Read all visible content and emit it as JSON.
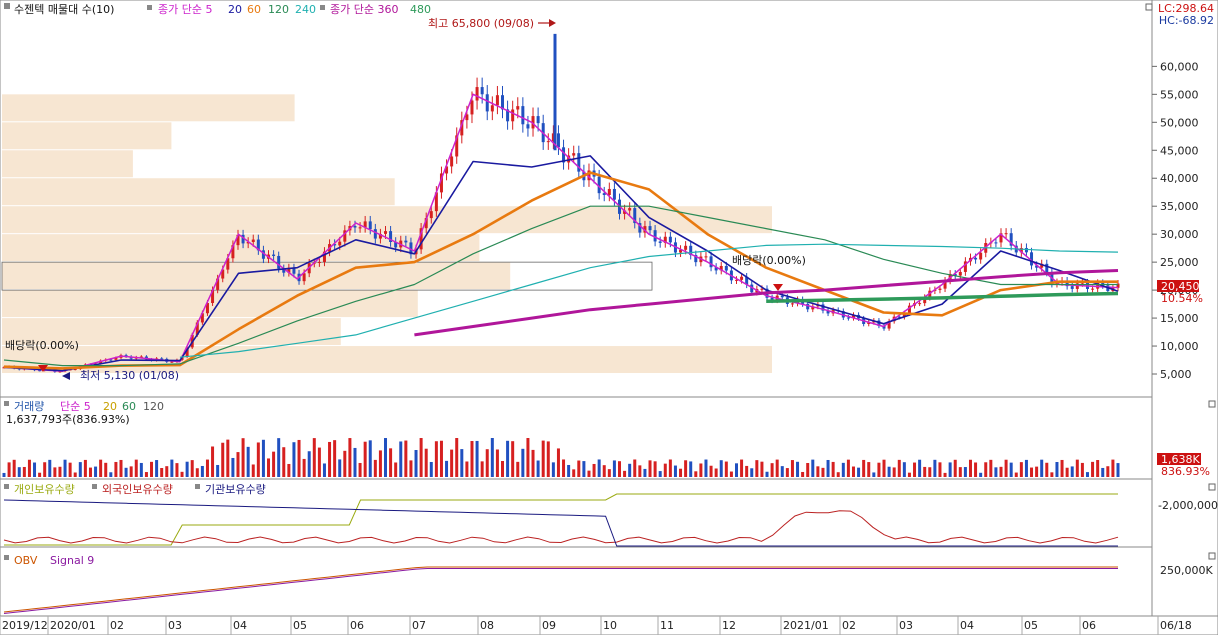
{
  "panels": {
    "price": {
      "title": "수젠텍 매물대 수(10)",
      "legend": [
        {
          "text": "종가 단순 5",
          "color": "#cc22cc"
        },
        {
          "text": "20",
          "color": "#1a1aa0"
        },
        {
          "text": "60",
          "color": "#e87a10"
        },
        {
          "text": "120",
          "color": "#2a8a55"
        },
        {
          "text": "240",
          "color": "#20b0b0"
        },
        {
          "text": "종가 단순 360",
          "color": "#b0169a"
        },
        {
          "text": "480",
          "color": "#2e9a5a"
        }
      ],
      "lc_label": "LC:298.64",
      "hc_label": "HC:-68.92",
      "annotations": {
        "high": "최고 65,800 (09/08)",
        "low": "최저 5,130 (01/08)",
        "dividend_left": "배당락(0.00%)",
        "dividend_right": "배당락(0.00%)"
      },
      "current_price": "20,450",
      "current_change": "10.54%",
      "y_ticks": [
        "60,000",
        "55,000",
        "50,000",
        "45,000",
        "40,000",
        "35,000",
        "30,000",
        "25,000",
        "20,000",
        "15,000",
        "10,000",
        "5,000"
      ]
    },
    "volume": {
      "legend": [
        {
          "text": "거래량",
          "color": "#2255aa"
        },
        {
          "text": "단순 5",
          "color": "#cc22cc"
        },
        {
          "text": "20",
          "color": "#c8a000"
        },
        {
          "text": "60",
          "color": "#2a8a55"
        },
        {
          "text": "120",
          "color": "#555555"
        }
      ],
      "readout": "1,637,793주(836.93%)",
      "value_box": "1,638K",
      "value_pct": "836.93%"
    },
    "holdings": {
      "legend": [
        {
          "text": "개인보유수량",
          "color": "#9aaa10"
        },
        {
          "text": "외국인보유수량",
          "color": "#bb2222"
        },
        {
          "text": "기관보유수량",
          "color": "#1a1a80"
        }
      ],
      "y_tick": "-2,000,000"
    },
    "obv": {
      "legend": [
        {
          "text": "OBV",
          "color": "#cc5500"
        },
        {
          "text": "Signal 9",
          "color": "#8a1aa0"
        }
      ],
      "y_tick": "250,000K"
    }
  },
  "x_labels": [
    "2019/12",
    "2020/01",
    "02",
    "03",
    "04",
    "05",
    "06",
    "07",
    "08",
    "09",
    "10",
    "11",
    "12",
    "2021/01",
    "02",
    "03",
    "04",
    "05",
    "06",
    "06/18"
  ],
  "chart_data": {
    "type": "line",
    "title": "수젠텍 매물대 수(10)",
    "xlabel": "",
    "ylabel": "",
    "ylim": [
      2500,
      66500
    ],
    "x": [
      "2019/12",
      "2020/01",
      "02",
      "03",
      "04",
      "05",
      "06",
      "07",
      "08",
      "09",
      "10",
      "11",
      "12",
      "2021/01",
      "02",
      "03",
      "04",
      "05",
      "06",
      "06/18"
    ],
    "series": [
      {
        "name": "종가 단순 5",
        "values": [
          6200,
          5500,
          8200,
          7200,
          30000,
          22000,
          32000,
          27000,
          55000,
          50000,
          40000,
          30000,
          25000,
          19000,
          16500,
          13500,
          21000,
          30000,
          21000,
          20450
        ]
      },
      {
        "name": "20",
        "values": [
          6200,
          5600,
          7500,
          7400,
          23000,
          24000,
          29000,
          26500,
          43000,
          42000,
          44000,
          33000,
          27000,
          20000,
          17000,
          14000,
          17500,
          27000,
          23500,
          19800
        ]
      },
      {
        "name": "60",
        "values": [
          6300,
          6000,
          6500,
          6600,
          13000,
          19000,
          24000,
          25000,
          30000,
          36000,
          41000,
          38000,
          30000,
          24000,
          20000,
          16000,
          15500,
          20000,
          21500,
          21500
        ]
      },
      {
        "name": "120",
        "values": [
          7500,
          6500,
          6500,
          6800,
          10500,
          14500,
          18000,
          21000,
          26500,
          31000,
          35000,
          35000,
          33000,
          31000,
          29000,
          25500,
          23000,
          21000,
          21000,
          21000
        ]
      },
      {
        "name": "240",
        "values": [
          null,
          null,
          null,
          8000,
          9000,
          10500,
          12000,
          15000,
          18000,
          21000,
          24000,
          26000,
          27000,
          28000,
          28200,
          28000,
          27800,
          27500,
          27000,
          26800
        ]
      },
      {
        "name": "종가 단순 360",
        "values": [
          null,
          null,
          null,
          null,
          null,
          null,
          null,
          12000,
          13500,
          15000,
          16500,
          17500,
          18500,
          19500,
          20000,
          20800,
          21600,
          22400,
          23100,
          23500
        ]
      },
      {
        "name": "480",
        "values": [
          null,
          null,
          null,
          null,
          null,
          null,
          null,
          null,
          null,
          null,
          null,
          null,
          null,
          18000,
          18200,
          18400,
          18600,
          18900,
          19200,
          19400
        ]
      }
    ],
    "volume_profile": {
      "price_bands": [
        52500,
        47500,
        42500,
        37500,
        32500,
        27500,
        22500,
        17500,
        12500,
        7500
      ],
      "relative_widths": [
        0.38,
        0.22,
        0.17,
        0.51,
        1.0,
        0.62,
        0.66,
        0.54,
        0.44,
        1.0
      ]
    },
    "high": {
      "value": 65800,
      "date": "09/08"
    },
    "low": {
      "value": 5130,
      "date": "01/08"
    },
    "last": 20450,
    "change_pct": 10.54
  }
}
